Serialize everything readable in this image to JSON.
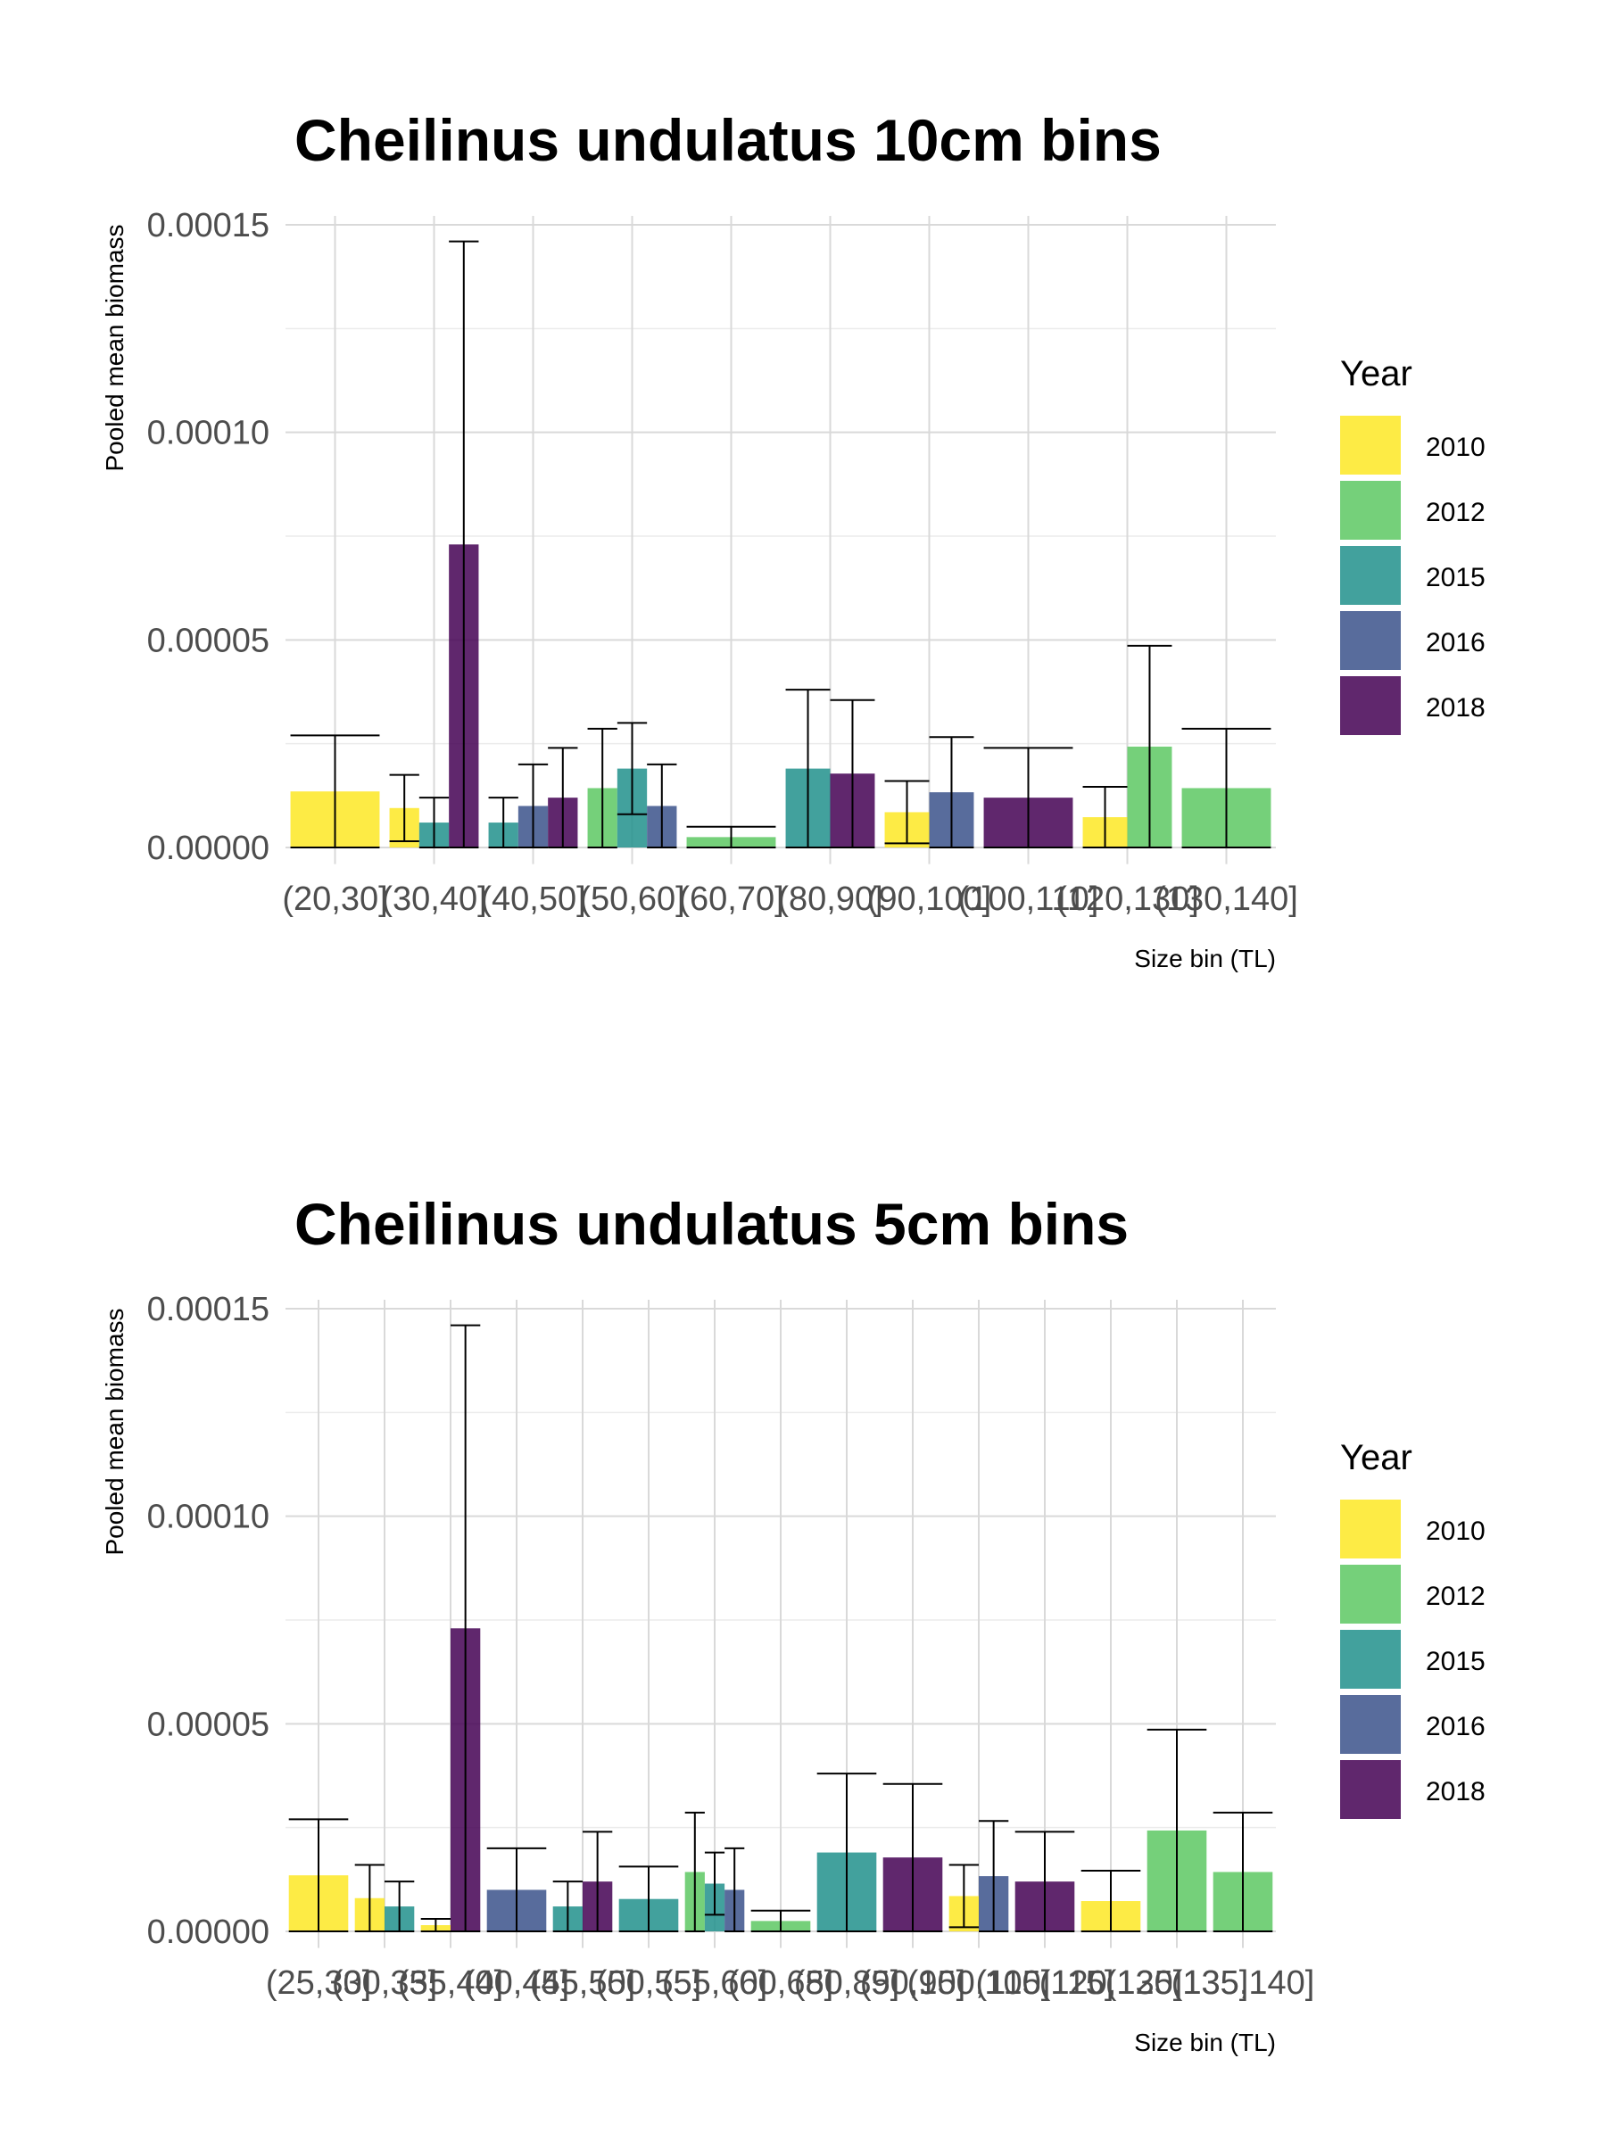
{
  "legend_title": "Year",
  "years": [
    "2010",
    "2012",
    "2015",
    "2016",
    "2018"
  ],
  "year_colors": {
    "2010": "#FDE725",
    "2012": "#5DC863",
    "2015": "#21908C",
    "2016": "#3B528B",
    "2018": "#440154"
  },
  "chart_data": [
    {
      "type": "bar",
      "title": "Cheilinus undulatus 10cm bins",
      "xlabel": "Size bin (TL)",
      "ylabel": "Pooled mean biomass",
      "ylim": [
        -4e-06,
        0.00015
      ],
      "yticks": [
        "0.00000",
        "0.00005",
        "0.00010",
        "0.00015"
      ],
      "categories": [
        "(20,30]",
        "(30,40]",
        "(40,50]",
        "(50,60]",
        "(60,70]",
        "(80,90]",
        "(90,100]",
        "(100,110]",
        "(120,130]",
        "(130,140]"
      ],
      "bars": [
        {
          "category": "(20,30]",
          "year": "2010",
          "value": 1.35e-05,
          "err_low": 0.0,
          "err_high": 2.7e-05
        },
        {
          "category": "(30,40]",
          "year": "2010",
          "value": 9.5e-06,
          "err_low": 1.5e-06,
          "err_high": 1.75e-05
        },
        {
          "category": "(30,40]",
          "year": "2015",
          "value": 6e-06,
          "err_low": 0.0,
          "err_high": 1.2e-05
        },
        {
          "category": "(30,40]",
          "year": "2018",
          "value": 7.3e-05,
          "err_low": 0.0,
          "err_high": 0.000146
        },
        {
          "category": "(40,50]",
          "year": "2015",
          "value": 6e-06,
          "err_low": 0.0,
          "err_high": 1.2e-05
        },
        {
          "category": "(40,50]",
          "year": "2016",
          "value": 1e-05,
          "err_low": 0.0,
          "err_high": 2e-05
        },
        {
          "category": "(40,50]",
          "year": "2018",
          "value": 1.2e-05,
          "err_low": 0.0,
          "err_high": 2.4e-05
        },
        {
          "category": "(50,60]",
          "year": "2012",
          "value": 1.43e-05,
          "err_low": 0.0,
          "err_high": 2.86e-05
        },
        {
          "category": "(50,60]",
          "year": "2015",
          "value": 1.9e-05,
          "err_low": 8e-06,
          "err_high": 3e-05
        },
        {
          "category": "(50,60]",
          "year": "2016",
          "value": 1e-05,
          "err_low": 0.0,
          "err_high": 2e-05
        },
        {
          "category": "(60,70]",
          "year": "2012",
          "value": 2.5e-06,
          "err_low": 0.0,
          "err_high": 5e-06
        },
        {
          "category": "(80,90]",
          "year": "2015",
          "value": 1.9e-05,
          "err_low": 0.0,
          "err_high": 3.8e-05
        },
        {
          "category": "(80,90]",
          "year": "2018",
          "value": 1.78e-05,
          "err_low": 0.0,
          "err_high": 3.55e-05
        },
        {
          "category": "(90,100]",
          "year": "2010",
          "value": 8.5e-06,
          "err_low": 1e-06,
          "err_high": 1.6e-05
        },
        {
          "category": "(90,100]",
          "year": "2016",
          "value": 1.33e-05,
          "err_low": 0.0,
          "err_high": 2.66e-05
        },
        {
          "category": "(100,110]",
          "year": "2018",
          "value": 1.2e-05,
          "err_low": 0.0,
          "err_high": 2.4e-05
        },
        {
          "category": "(120,130]",
          "year": "2010",
          "value": 7.3e-06,
          "err_low": 0.0,
          "err_high": 1.46e-05
        },
        {
          "category": "(120,130]",
          "year": "2012",
          "value": 2.43e-05,
          "err_low": 0.0,
          "err_high": 4.86e-05
        },
        {
          "category": "(130,140]",
          "year": "2012",
          "value": 1.43e-05,
          "err_low": 0.0,
          "err_high": 2.86e-05
        }
      ]
    },
    {
      "type": "bar",
      "title": "Cheilinus undulatus 5cm bins",
      "xlabel": "Size bin (TL)",
      "ylabel": "Pooled mean biomass",
      "ylim": [
        -4e-06,
        0.00015
      ],
      "yticks": [
        "0.00000",
        "0.00005",
        "0.00010",
        "0.00015"
      ],
      "categories": [
        "(25,30]",
        "(30,35]",
        "(35,40]",
        "(40,45]",
        "(45,50]",
        "(50,55]",
        "(55,60]",
        "(60,65]",
        "(80,85]",
        "(90,95]",
        "(100,105]",
        "(110,115]",
        "(120,125]",
        "(130,135]",
        "(135,140]"
      ],
      "bars": [
        {
          "category": "(25,30]",
          "year": "2010",
          "value": 1.35e-05,
          "err_low": 0.0,
          "err_high": 2.7e-05
        },
        {
          "category": "(30,35]",
          "year": "2010",
          "value": 8e-06,
          "err_low": 0.0,
          "err_high": 1.6e-05
        },
        {
          "category": "(30,35]",
          "year": "2015",
          "value": 6e-06,
          "err_low": 0.0,
          "err_high": 1.2e-05
        },
        {
          "category": "(35,40]",
          "year": "2010",
          "value": 1.5e-06,
          "err_low": 0.0,
          "err_high": 3e-06
        },
        {
          "category": "(35,40]",
          "year": "2018",
          "value": 7.3e-05,
          "err_low": 0.0,
          "err_high": 0.000146
        },
        {
          "category": "(40,45]",
          "year": "2016",
          "value": 1e-05,
          "err_low": 0.0,
          "err_high": 2e-05
        },
        {
          "category": "(45,50]",
          "year": "2015",
          "value": 6e-06,
          "err_low": 0.0,
          "err_high": 1.2e-05
        },
        {
          "category": "(45,50]",
          "year": "2018",
          "value": 1.2e-05,
          "err_low": 0.0,
          "err_high": 2.4e-05
        },
        {
          "category": "(50,55]",
          "year": "2015",
          "value": 7.8e-06,
          "err_low": 0.0,
          "err_high": 1.56e-05
        },
        {
          "category": "(55,60]",
          "year": "2012",
          "value": 1.43e-05,
          "err_low": 0.0,
          "err_high": 2.86e-05
        },
        {
          "category": "(55,60]",
          "year": "2015",
          "value": 1.15e-05,
          "err_low": 4e-06,
          "err_high": 1.9e-05
        },
        {
          "category": "(55,60]",
          "year": "2016",
          "value": 1e-05,
          "err_low": 0.0,
          "err_high": 2e-05
        },
        {
          "category": "(60,65]",
          "year": "2012",
          "value": 2.5e-06,
          "err_low": 0.0,
          "err_high": 5e-06
        },
        {
          "category": "(80,85]",
          "year": "2015",
          "value": 1.9e-05,
          "err_low": 0.0,
          "err_high": 3.8e-05
        },
        {
          "category": "(90,95]",
          "year": "2018",
          "value": 1.78e-05,
          "err_low": 0.0,
          "err_high": 3.55e-05
        },
        {
          "category": "(100,105]",
          "year": "2010",
          "value": 8.5e-06,
          "err_low": 1e-06,
          "err_high": 1.6e-05
        },
        {
          "category": "(100,105]",
          "year": "2016",
          "value": 1.33e-05,
          "err_low": 0.0,
          "err_high": 2.66e-05
        },
        {
          "category": "(110,115]",
          "year": "2018",
          "value": 1.2e-05,
          "err_low": 0.0,
          "err_high": 2.4e-05
        },
        {
          "category": "(120,125]",
          "year": "2010",
          "value": 7.3e-06,
          "err_low": 0.0,
          "err_high": 1.46e-05
        },
        {
          "category": "(130,135]",
          "year": "2012",
          "value": 2.43e-05,
          "err_low": 0.0,
          "err_high": 4.86e-05
        },
        {
          "category": "(135,140]",
          "year": "2012",
          "value": 1.43e-05,
          "err_low": 0.0,
          "err_high": 2.86e-05
        }
      ]
    }
  ]
}
